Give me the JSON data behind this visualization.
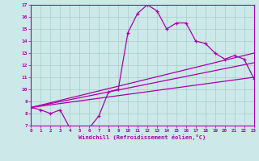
{
  "xlabel": "Windchill (Refroidissement éolien,°C)",
  "bg_color": "#cce8e8",
  "grid_color": "#aacccc",
  "line_color": "#aa00aa",
  "xmin": 0,
  "xmax": 23,
  "ymin": 7,
  "ymax": 17,
  "line1_x": [
    0,
    1,
    2,
    3,
    4,
    5,
    6,
    7,
    8,
    9,
    10,
    11,
    12,
    13,
    14,
    15,
    16,
    17,
    18,
    19,
    20,
    21,
    22,
    23
  ],
  "line1_y": [
    8.5,
    8.3,
    8.0,
    8.3,
    6.8,
    6.8,
    6.8,
    7.8,
    9.8,
    10.0,
    14.7,
    16.3,
    17.0,
    16.5,
    15.0,
    15.5,
    15.5,
    14.0,
    13.8,
    13.0,
    12.5,
    12.8,
    12.5,
    10.9
  ],
  "line2_x": [
    0,
    23
  ],
  "line2_y": [
    8.5,
    13.0
  ],
  "line3_x": [
    0,
    23
  ],
  "line3_y": [
    8.5,
    12.2
  ],
  "line4_x": [
    0,
    23
  ],
  "line4_y": [
    8.5,
    11.0
  ],
  "xtick_labels": [
    "0",
    "1",
    "2",
    "3",
    "4",
    "5",
    "6",
    "7",
    "8",
    "9",
    "10",
    "11",
    "12",
    "13",
    "14",
    "15",
    "16",
    "17",
    "18",
    "19",
    "20",
    "21",
    "22",
    "23"
  ],
  "ytick_labels": [
    "7",
    "8",
    "9",
    "10",
    "11",
    "12",
    "13",
    "14",
    "15",
    "16",
    "17"
  ]
}
